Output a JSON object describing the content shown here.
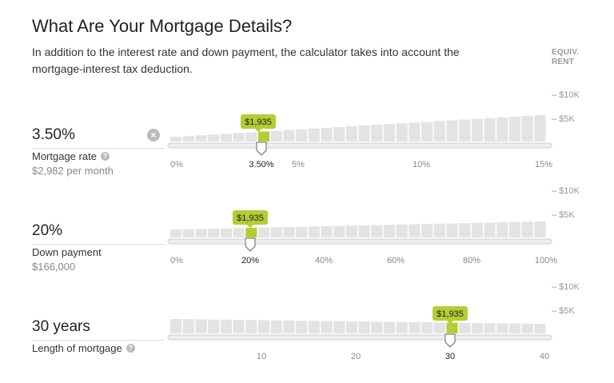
{
  "header": {
    "title": "What Are Your Mortgage Details?",
    "subtitle": "In addition to the interest rate and down payment, the calculator takes into account the mortgage-interest tax deduction.",
    "axis_label_line1": "EQUIV.",
    "axis_label_line2": "RENT",
    "y_ticks": [
      "– $10K",
      "– $5K"
    ]
  },
  "rate": {
    "value": "3.50%",
    "label": "Mortgage rate",
    "sub": "$2,982 per month",
    "tooltip": "$1,935",
    "x_ticks": [
      "0%",
      "5%",
      "10%",
      "15%"
    ],
    "selected_tick": "3.50%"
  },
  "down": {
    "value": "20%",
    "label": "Down payment",
    "sub": "$166,000",
    "tooltip": "$1,935",
    "x_ticks": [
      "0%",
      "40%",
      "60%",
      "80%",
      "100%"
    ],
    "selected_tick": "20%"
  },
  "length": {
    "value": "30 years",
    "label": "Length of mortgage",
    "tooltip": "$1,935",
    "x_ticks": [
      "10",
      "20",
      "40"
    ],
    "selected_tick": "30"
  },
  "colors": {
    "accent": "#b5cc33",
    "bar": "#e3e3e3",
    "track": "#eeeeee"
  },
  "icons": {
    "help": "question-mark-icon",
    "clear": "close-circle-icon"
  }
}
